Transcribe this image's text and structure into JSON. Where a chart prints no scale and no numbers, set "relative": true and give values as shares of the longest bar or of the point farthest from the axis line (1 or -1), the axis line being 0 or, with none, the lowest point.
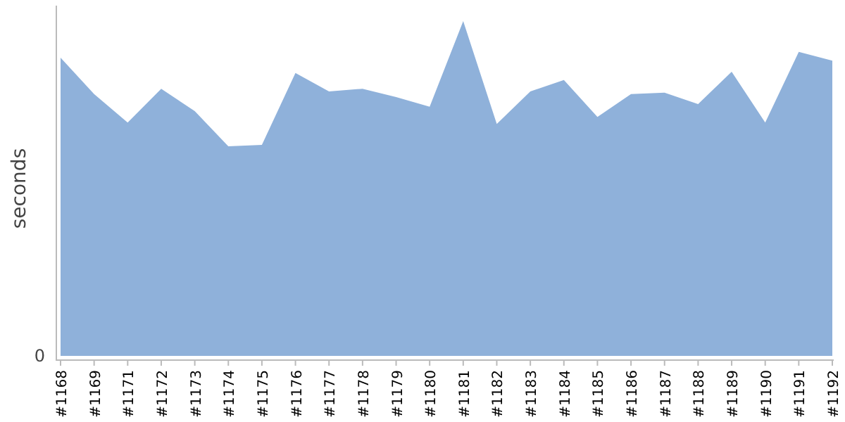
{
  "chart_data": {
    "type": "area",
    "ylabel": "seconds",
    "relative": true,
    "annotations": [
      "0"
    ],
    "categories": [
      "#1168",
      "#1169",
      "#1171",
      "#1172",
      "#1173",
      "#1174",
      "#1175",
      "#1176",
      "#1177",
      "#1178",
      "#1179",
      "#1180",
      "#1181",
      "#1182",
      "#1183",
      "#1184",
      "#1185",
      "#1186",
      "#1187",
      "#1188",
      "#1189",
      "#1190",
      "#1191",
      "#1192"
    ],
    "series": [
      {
        "color": "#8fb1da",
        "values": [
          0.891,
          0.782,
          0.697,
          0.798,
          0.731,
          0.626,
          0.63,
          0.845,
          0.79,
          0.798,
          0.773,
          0.744,
          1,
          0.693,
          0.79,
          0.824,
          0.714,
          0.782,
          0.786,
          0.752,
          0.849,
          0.697,
          0.908,
          0.882
        ]
      }
    ]
  }
}
